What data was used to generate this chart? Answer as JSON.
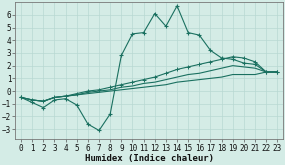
{
  "bg_color": "#d4ece6",
  "grid_color": "#b8d8d2",
  "line_color": "#1a7060",
  "x_label": "Humidex (Indice chaleur)",
  "ylim": [
    -3.8,
    7.0
  ],
  "xlim": [
    -0.5,
    23.5
  ],
  "yticks": [
    -3,
    -2,
    -1,
    0,
    1,
    2,
    3,
    4,
    5,
    6
  ],
  "xticks": [
    0,
    1,
    2,
    3,
    4,
    5,
    6,
    7,
    8,
    9,
    10,
    11,
    12,
    13,
    14,
    15,
    16,
    17,
    18,
    19,
    20,
    21,
    22,
    23
  ],
  "curve_main_x": [
    0,
    1,
    2,
    3,
    4,
    5,
    6,
    7,
    8,
    9,
    10,
    11,
    12,
    13,
    14,
    15,
    16,
    17,
    18,
    19,
    20,
    21,
    22,
    23
  ],
  "curve_main_y": [
    -0.5,
    -0.9,
    -1.3,
    -0.7,
    -0.6,
    -1.1,
    -2.6,
    -3.1,
    -1.8,
    2.8,
    4.5,
    4.6,
    6.1,
    5.1,
    6.7,
    4.6,
    4.4,
    3.2,
    2.6,
    2.5,
    2.2,
    2.1,
    1.5,
    1.5
  ],
  "curve_top_x": [
    0,
    1,
    2,
    3,
    4,
    5,
    6,
    7,
    8,
    9,
    10,
    11,
    12,
    13,
    14,
    15,
    16,
    17,
    18,
    19,
    20,
    21,
    22,
    23
  ],
  "curve_top_y": [
    -0.5,
    -0.7,
    -0.8,
    -0.5,
    -0.4,
    -0.2,
    0.0,
    0.1,
    0.3,
    0.5,
    0.7,
    0.9,
    1.1,
    1.4,
    1.7,
    1.9,
    2.1,
    2.3,
    2.5,
    2.7,
    2.6,
    2.3,
    1.5,
    1.5
  ],
  "curve_mid_x": [
    0,
    1,
    2,
    3,
    4,
    5,
    6,
    7,
    8,
    9,
    10,
    11,
    12,
    13,
    14,
    15,
    16,
    17,
    18,
    19,
    20,
    21,
    22,
    23
  ],
  "curve_mid_y": [
    -0.5,
    -0.7,
    -0.8,
    -0.5,
    -0.4,
    -0.3,
    -0.1,
    0.0,
    0.1,
    0.3,
    0.4,
    0.6,
    0.7,
    0.9,
    1.1,
    1.3,
    1.4,
    1.6,
    1.8,
    2.0,
    1.9,
    1.8,
    1.5,
    1.5
  ],
  "curve_bot_x": [
    0,
    1,
    2,
    3,
    4,
    5,
    6,
    7,
    8,
    9,
    10,
    11,
    12,
    13,
    14,
    15,
    16,
    17,
    18,
    19,
    20,
    21,
    22,
    23
  ],
  "curve_bot_y": [
    -0.5,
    -0.7,
    -0.8,
    -0.5,
    -0.4,
    -0.3,
    -0.2,
    -0.1,
    0.0,
    0.1,
    0.2,
    0.3,
    0.4,
    0.5,
    0.7,
    0.8,
    0.9,
    1.0,
    1.1,
    1.3,
    1.3,
    1.3,
    1.5,
    1.5
  ]
}
